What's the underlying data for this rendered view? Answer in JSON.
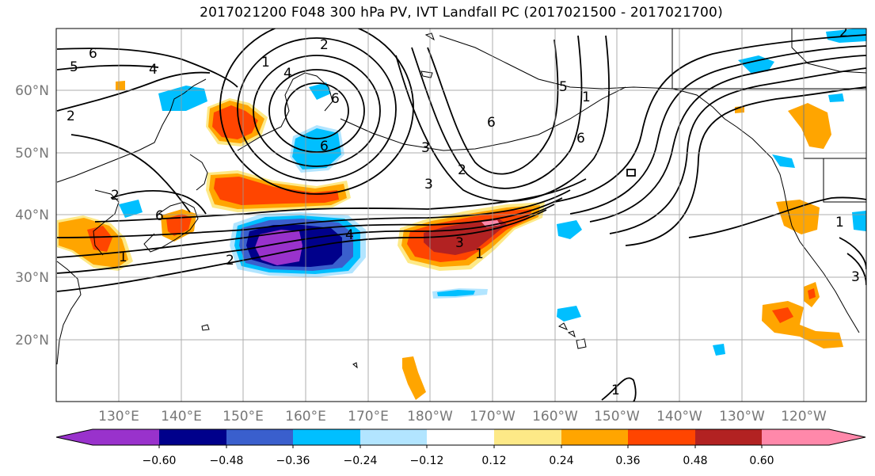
{
  "title": "2017021200 F048 300 hPa PV, IVT Landfall PC (2017021500 - 2017021700)",
  "map": {
    "lat_labels": [
      "60°N",
      "50°N",
      "40°N",
      "30°N",
      "20°N"
    ],
    "lon_labels": [
      "130°E",
      "140°E",
      "150°E",
      "160°E",
      "170°E",
      "180°W",
      "170°W",
      "160°W",
      "150°W",
      "140°W",
      "130°W",
      "120°W"
    ],
    "contour_labels": [
      "6",
      "5",
      "4",
      "2",
      "1",
      "4",
      "2",
      "6",
      "3",
      "2",
      "6",
      "2",
      "1",
      "6",
      "5",
      "6",
      "3",
      "4",
      "2",
      "1",
      "3",
      "1",
      "2",
      "6",
      "1",
      "1",
      "3"
    ]
  },
  "colorbar": {
    "tick_labels": [
      "−0.60",
      "−0.48",
      "−0.36",
      "−0.24",
      "−0.12",
      "0.12",
      "0.24",
      "0.36",
      "0.48",
      "0.60"
    ],
    "colors": [
      "#9932cc",
      "#00008b",
      "#3a5fcd",
      "#00bfff",
      "#b2e5ff",
      "#ffffff",
      "#fde987",
      "#ffa500",
      "#ff4500",
      "#b22222",
      "#ff88aa"
    ]
  }
}
